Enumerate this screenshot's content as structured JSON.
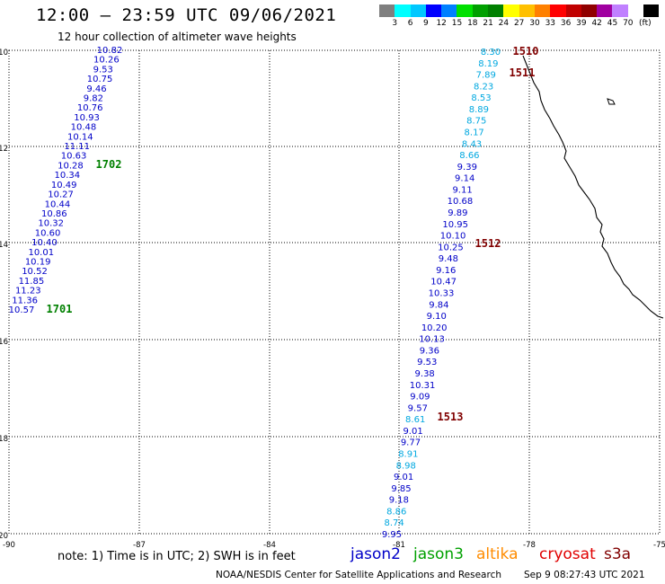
{
  "title": "12:00 – 23:59 UTC 09/06/2021",
  "subtitle": "12 hour collection of altimeter wave heights",
  "colorbar": {
    "unit": "(ft)",
    "colors": [
      "#7f7f7f",
      "#00ffff",
      "#00c8ff",
      "#0000ff",
      "#0080ff",
      "#00e000",
      "#00a000",
      "#008000",
      "#ffff00",
      "#ffc000",
      "#ff8000",
      "#ff0000",
      "#c00000",
      "#900000",
      "#a000a0",
      "#c080ff",
      "#ffffff",
      "#000000"
    ],
    "labels": [
      "3",
      "6",
      "9",
      "12",
      "15",
      "18",
      "21",
      "24",
      "27",
      "30",
      "33",
      "36",
      "39",
      "42",
      "45",
      "70"
    ]
  },
  "axes": {
    "lat_labels": [
      "10",
      "12",
      "14",
      "16",
      "18",
      "20"
    ],
    "lon_labels": [
      "-90",
      "-87",
      "-84",
      "-81",
      "-78",
      "-75"
    ]
  },
  "passes": [
    {
      "id": "1701",
      "color": "#008000"
    },
    {
      "id": "1702",
      "color": "#008000"
    },
    {
      "id": "1510",
      "color": "#800000"
    },
    {
      "id": "1511",
      "color": "#800000"
    },
    {
      "id": "1512",
      "color": "#800000"
    },
    {
      "id": "1513",
      "color": "#800000"
    }
  ],
  "track_west": [
    {
      "v": "10.82",
      "c": "#0000c8"
    },
    {
      "v": "10.26",
      "c": "#0000c8"
    },
    {
      "v": "9.53",
      "c": "#0000c8"
    },
    {
      "v": "10.75",
      "c": "#0000c8"
    },
    {
      "v": "9.46",
      "c": "#0000c8"
    },
    {
      "v": "9.82",
      "c": "#0000c8"
    },
    {
      "v": "10.76",
      "c": "#0000c8"
    },
    {
      "v": "10.93",
      "c": "#0000c8"
    },
    {
      "v": "10.48",
      "c": "#0000c8"
    },
    {
      "v": "10.14",
      "c": "#0000c8"
    },
    {
      "v": "11.11",
      "c": "#0000c8"
    },
    {
      "v": "10.63",
      "c": "#0000c8"
    },
    {
      "v": "10.28",
      "c": "#0000c8"
    },
    {
      "v": "10.34",
      "c": "#0000c8"
    },
    {
      "v": "10.49",
      "c": "#0000c8"
    },
    {
      "v": "10.27",
      "c": "#0000c8"
    },
    {
      "v": "10.44",
      "c": "#0000c8"
    },
    {
      "v": "10.86",
      "c": "#0000c8"
    },
    {
      "v": "10.32",
      "c": "#0000c8"
    },
    {
      "v": "10.60",
      "c": "#0000c8"
    },
    {
      "v": "10.40",
      "c": "#0000c8"
    },
    {
      "v": "10.01",
      "c": "#0000c8"
    },
    {
      "v": "10.19",
      "c": "#0000c8"
    },
    {
      "v": "10.52",
      "c": "#0000c8"
    },
    {
      "v": "11.85",
      "c": "#0000c8"
    },
    {
      "v": "11.23",
      "c": "#0000c8"
    },
    {
      "v": "11.36",
      "c": "#0000c8"
    },
    {
      "v": "10.57",
      "c": "#0000c8"
    }
  ],
  "track_east": [
    {
      "v": "8.30",
      "c": "#00a8e0"
    },
    {
      "v": "8.19",
      "c": "#00a8e0"
    },
    {
      "v": "7.89",
      "c": "#00a8e0"
    },
    {
      "v": "8.23",
      "c": "#00a8e0"
    },
    {
      "v": "8.53",
      "c": "#00a8e0"
    },
    {
      "v": "8.89",
      "c": "#00a8e0"
    },
    {
      "v": "8.75",
      "c": "#00a8e0"
    },
    {
      "v": "8.17",
      "c": "#00a8e0"
    },
    {
      "v": "8.43",
      "c": "#00a8e0"
    },
    {
      "v": "8.66",
      "c": "#00a8e0"
    },
    {
      "v": "9.39",
      "c": "#0000c8"
    },
    {
      "v": "9.14",
      "c": "#0000c8"
    },
    {
      "v": "9.11",
      "c": "#0000c8"
    },
    {
      "v": "10.68",
      "c": "#0000c8"
    },
    {
      "v": "9.89",
      "c": "#0000c8"
    },
    {
      "v": "10.95",
      "c": "#0000c8"
    },
    {
      "v": "10.10",
      "c": "#0000c8"
    },
    {
      "v": "10.25",
      "c": "#0000c8"
    },
    {
      "v": "9.48",
      "c": "#0000c8"
    },
    {
      "v": "9.16",
      "c": "#0000c8"
    },
    {
      "v": "10.47",
      "c": "#0000c8"
    },
    {
      "v": "10.33",
      "c": "#0000c8"
    },
    {
      "v": "9.84",
      "c": "#0000c8"
    },
    {
      "v": "9.10",
      "c": "#0000c8"
    },
    {
      "v": "10.20",
      "c": "#0000c8"
    },
    {
      "v": "10.13",
      "c": "#0000c8"
    },
    {
      "v": "9.36",
      "c": "#0000c8"
    },
    {
      "v": "9.53",
      "c": "#0000c8"
    },
    {
      "v": "9.38",
      "c": "#0000c8"
    },
    {
      "v": "10.31",
      "c": "#0000c8"
    },
    {
      "v": "9.09",
      "c": "#0000c8"
    },
    {
      "v": "9.57",
      "c": "#0000c8"
    },
    {
      "v": "8.61",
      "c": "#00a8e0"
    },
    {
      "v": "9.01",
      "c": "#0000c8"
    },
    {
      "v": "9.77",
      "c": "#0000c8"
    },
    {
      "v": "8.91",
      "c": "#00a8e0"
    },
    {
      "v": "8.98",
      "c": "#00a8e0"
    },
    {
      "v": "9.01",
      "c": "#0000c8"
    },
    {
      "v": "9.85",
      "c": "#0000c8"
    },
    {
      "v": "9.18",
      "c": "#0000c8"
    },
    {
      "v": "8.86",
      "c": "#00a8e0"
    },
    {
      "v": "8.74",
      "c": "#00a8e0"
    },
    {
      "v": "9.95",
      "c": "#0000c8"
    }
  ],
  "note": "note:  1) Time is in UTC;  2) SWH is in feet",
  "legend": [
    {
      "label": "jason2",
      "color": "#0000c8"
    },
    {
      "label": "jason3",
      "color": "#00a000"
    },
    {
      "label": "altika",
      "color": "#ff8c00"
    },
    {
      "label": "cryosat",
      "color": "#e00000"
    },
    {
      "label": "s3a",
      "color": "#800000"
    }
  ],
  "credit": "NOAA/NESDIS Center for Satellite Applications and Research",
  "generated": "Sep  9 08:27:43 UTC 2021"
}
